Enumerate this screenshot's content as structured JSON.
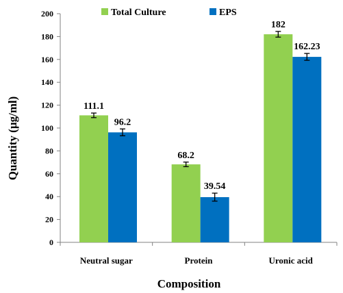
{
  "chart_data": {
    "type": "bar",
    "title": "",
    "xlabel": "Composition",
    "ylabel": "Quantity (μg/ml)",
    "categories": [
      "Neutral sugar",
      "Protein",
      "Uronic acid"
    ],
    "ylim": [
      0,
      200
    ],
    "yticks": [
      0,
      20,
      40,
      60,
      80,
      100,
      120,
      140,
      160,
      180,
      200
    ],
    "grid": false,
    "legend_position": "top",
    "series": [
      {
        "name": "Total Culture",
        "color": "#92d050",
        "values": [
          111.1,
          68.2,
          182
        ],
        "errors": [
          2,
          2,
          2.5
        ],
        "labels": [
          "111.1",
          "68.2",
          "182"
        ]
      },
      {
        "name": "EPS",
        "color": "#0070c0",
        "values": [
          96.2,
          39.54,
          162.23
        ],
        "errors": [
          3,
          3.5,
          3
        ],
        "labels": [
          "96.2",
          "39.54",
          "162.23"
        ]
      }
    ]
  }
}
